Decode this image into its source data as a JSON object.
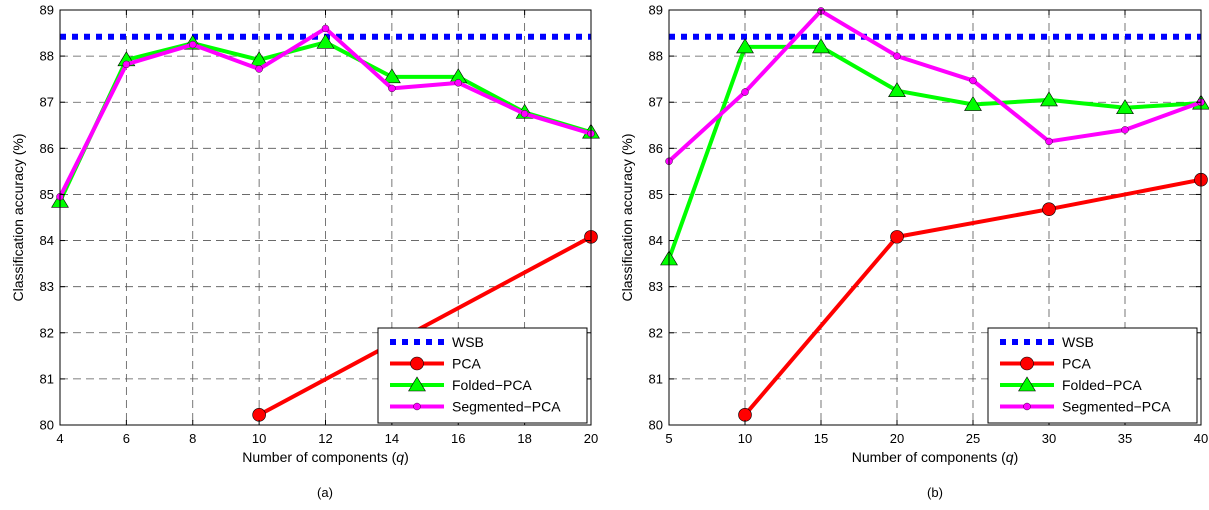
{
  "chart_data": [
    {
      "type": "line",
      "panel_label": "(a)",
      "xlabel": "Number of components (",
      "xlabel_var": "q",
      "xlabel_end": ")",
      "ylabel": "Classification accuracy (%)",
      "xlim": [
        4,
        20
      ],
      "ylim": [
        80,
        89
      ],
      "xticks": [
        "4",
        "6",
        "8",
        "10",
        "12",
        "14",
        "16",
        "18",
        "20"
      ],
      "yticks": [
        "80",
        "81",
        "82",
        "83",
        "84",
        "85",
        "86",
        "87",
        "88",
        "89"
      ],
      "grid": true,
      "legend_position": "bottom-right",
      "series": [
        {
          "name": "WSB",
          "color": "#0000ff",
          "style": "dotted",
          "marker": "none",
          "x": [
            4,
            20
          ],
          "y": [
            88.42,
            88.42
          ]
        },
        {
          "name": "PCA",
          "color": "#ff0000",
          "style": "solid",
          "marker": "circle",
          "x": [
            10,
            20
          ],
          "y": [
            80.22,
            84.08
          ]
        },
        {
          "name": "Folded−PCA",
          "color": "#00ff00",
          "style": "solid",
          "marker": "triangle",
          "x": [
            4,
            6,
            8,
            10,
            12,
            14,
            16,
            18,
            20
          ],
          "y": [
            84.85,
            87.92,
            88.28,
            87.92,
            88.3,
            87.55,
            87.55,
            86.78,
            86.35
          ]
        },
        {
          "name": "Segmented−PCA",
          "color": "#ff00ff",
          "style": "solid",
          "marker": "dot",
          "x": [
            4,
            6,
            8,
            10,
            12,
            14,
            16,
            18,
            20
          ],
          "y": [
            84.95,
            87.82,
            88.25,
            87.72,
            88.6,
            87.3,
            87.42,
            86.75,
            86.32
          ]
        }
      ]
    },
    {
      "type": "line",
      "panel_label": "(b)",
      "xlabel": "Number of components (",
      "xlabel_var": "q",
      "xlabel_end": ")",
      "ylabel": "Classification accuracy (%)",
      "xlim": [
        5,
        40
      ],
      "ylim": [
        80,
        89
      ],
      "xticks": [
        "5",
        "10",
        "15",
        "20",
        "25",
        "30",
        "35",
        "40"
      ],
      "yticks": [
        "80",
        "81",
        "82",
        "83",
        "84",
        "85",
        "86",
        "87",
        "88",
        "89"
      ],
      "grid": true,
      "legend_position": "bottom-right",
      "series": [
        {
          "name": "WSB",
          "color": "#0000ff",
          "style": "dotted",
          "marker": "none",
          "x": [
            5,
            40
          ],
          "y": [
            88.42,
            88.42
          ]
        },
        {
          "name": "PCA",
          "color": "#ff0000",
          "style": "solid",
          "marker": "circle",
          "x": [
            10,
            20,
            30,
            40
          ],
          "y": [
            80.22,
            84.08,
            84.68,
            85.32
          ]
        },
        {
          "name": "Folded−PCA",
          "color": "#00ff00",
          "style": "solid",
          "marker": "triangle",
          "x": [
            5,
            10,
            15,
            20,
            25,
            30,
            35,
            40
          ],
          "y": [
            83.6,
            88.2,
            88.2,
            87.25,
            86.95,
            87.05,
            86.88,
            86.98
          ]
        },
        {
          "name": "Segmented−PCA",
          "color": "#ff00ff",
          "style": "solid",
          "marker": "dot",
          "x": [
            5,
            10,
            15,
            20,
            25,
            30,
            35,
            40
          ],
          "y": [
            85.72,
            87.22,
            88.98,
            88.0,
            87.47,
            86.15,
            86.4,
            87.0
          ]
        }
      ]
    }
  ]
}
